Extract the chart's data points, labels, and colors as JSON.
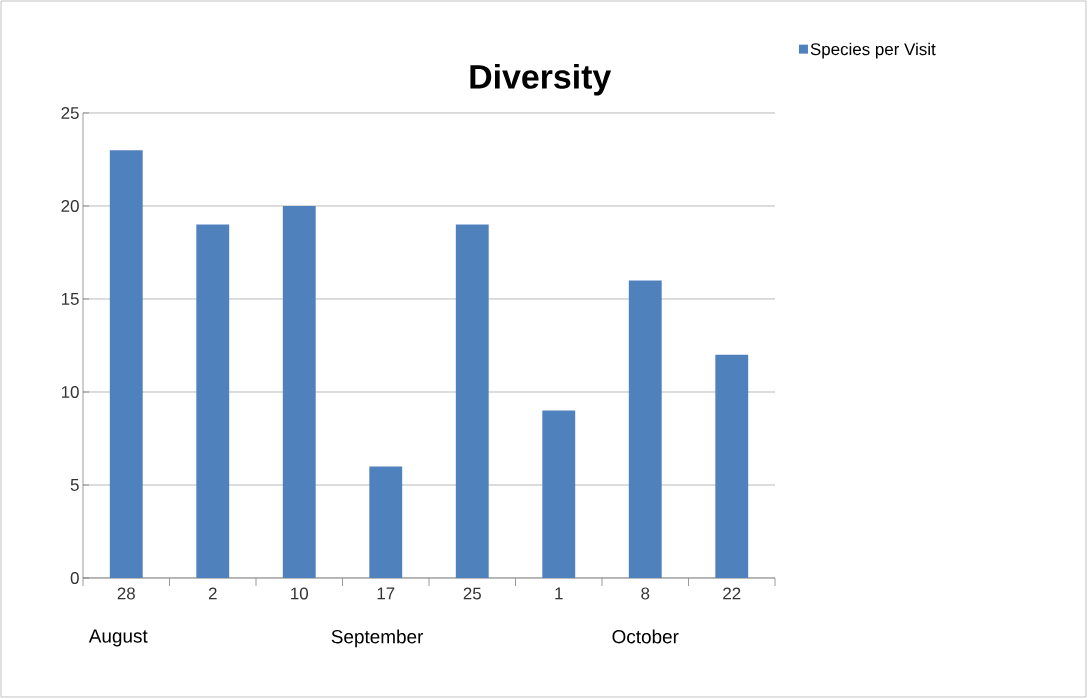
{
  "chart_data": {
    "type": "bar",
    "title": "Diversity",
    "categories": [
      "28",
      "2",
      "10",
      "17",
      "25",
      "1",
      "8",
      "22"
    ],
    "series": [
      {
        "name": "Species per Visit",
        "color": "#4f81bd",
        "values": [
          23,
          19,
          20,
          6,
          19,
          9,
          16,
          12
        ]
      }
    ],
    "annotations": [
      "August",
      "September",
      "October"
    ],
    "ylim": [
      0,
      25
    ],
    "yticks": [
      0,
      5,
      10,
      15,
      20,
      25
    ],
    "grid": "y",
    "legend": "top right"
  }
}
